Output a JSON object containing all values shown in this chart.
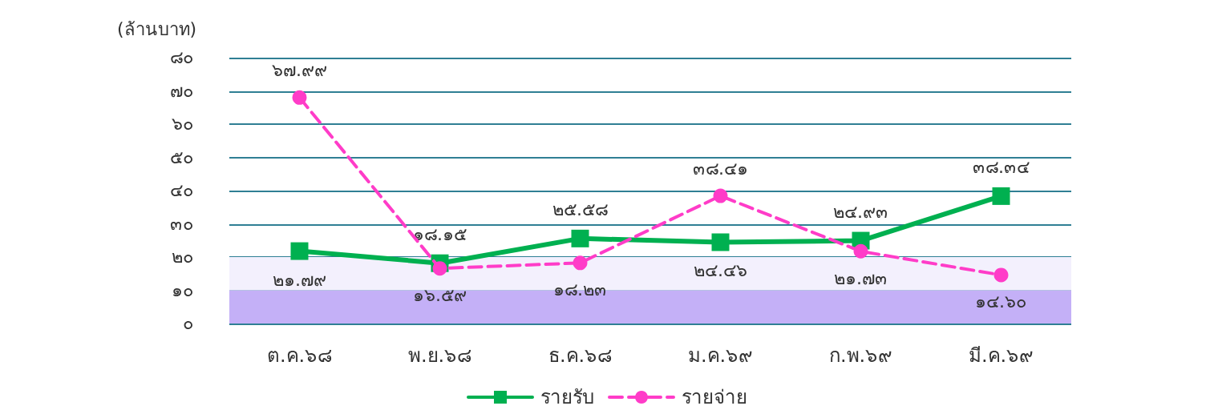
{
  "chart_data": {
    "type": "line",
    "ylabel": "(ล้านบาท)",
    "categories": [
      "ต.ค.๖๘",
      "พ.ย.๖๘",
      "ธ.ค.๖๘",
      "ม.ค.๖๙",
      "ก.พ.๖๙",
      "มี.ค.๖๙"
    ],
    "series": [
      {
        "name": "รายรับ",
        "color": "#00b050",
        "marker": "square",
        "line_style": "solid",
        "values": [
          21.79,
          18.15,
          25.58,
          24.46,
          24.93,
          38.34
        ],
        "value_labels": [
          "๒๑.๗๙",
          "๑๘.๑๕",
          "๒๕.๕๘",
          "๒๔.๔๖",
          "๒๔.๙๓",
          "๓๘.๓๔"
        ]
      },
      {
        "name": "รายจ่าย",
        "color": "#ff3cc8",
        "marker": "circle",
        "line_style": "dashed",
        "values": [
          67.99,
          16.59,
          18.23,
          38.41,
          21.73,
          14.6
        ],
        "value_labels": [
          "๖๗.๙๙",
          "๑๖.๕๙",
          "๑๘.๒๓",
          "๓๘.๔๑",
          "๒๑.๗๓",
          "๑๔.๖๐"
        ]
      }
    ],
    "ylim": [
      0,
      80
    ],
    "yticks": [
      {
        "value": 0,
        "label": "๐"
      },
      {
        "value": 10,
        "label": "๑๐"
      },
      {
        "value": 20,
        "label": "๒๐"
      },
      {
        "value": 30,
        "label": "๓๐"
      },
      {
        "value": 40,
        "label": "๔๐"
      },
      {
        "value": 50,
        "label": "๕๐"
      },
      {
        "value": 60,
        "label": "๖๐"
      },
      {
        "value": 70,
        "label": "๗๐"
      },
      {
        "value": 80,
        "label": "๘๐"
      }
    ],
    "bands": [
      {
        "axis": "y",
        "from": 0,
        "to": 10,
        "color": "#c4b0f7"
      },
      {
        "axis": "y",
        "from": 10,
        "to": 20,
        "color": "#f3f0fd"
      }
    ],
    "grid": "y",
    "legend": "bottom"
  }
}
